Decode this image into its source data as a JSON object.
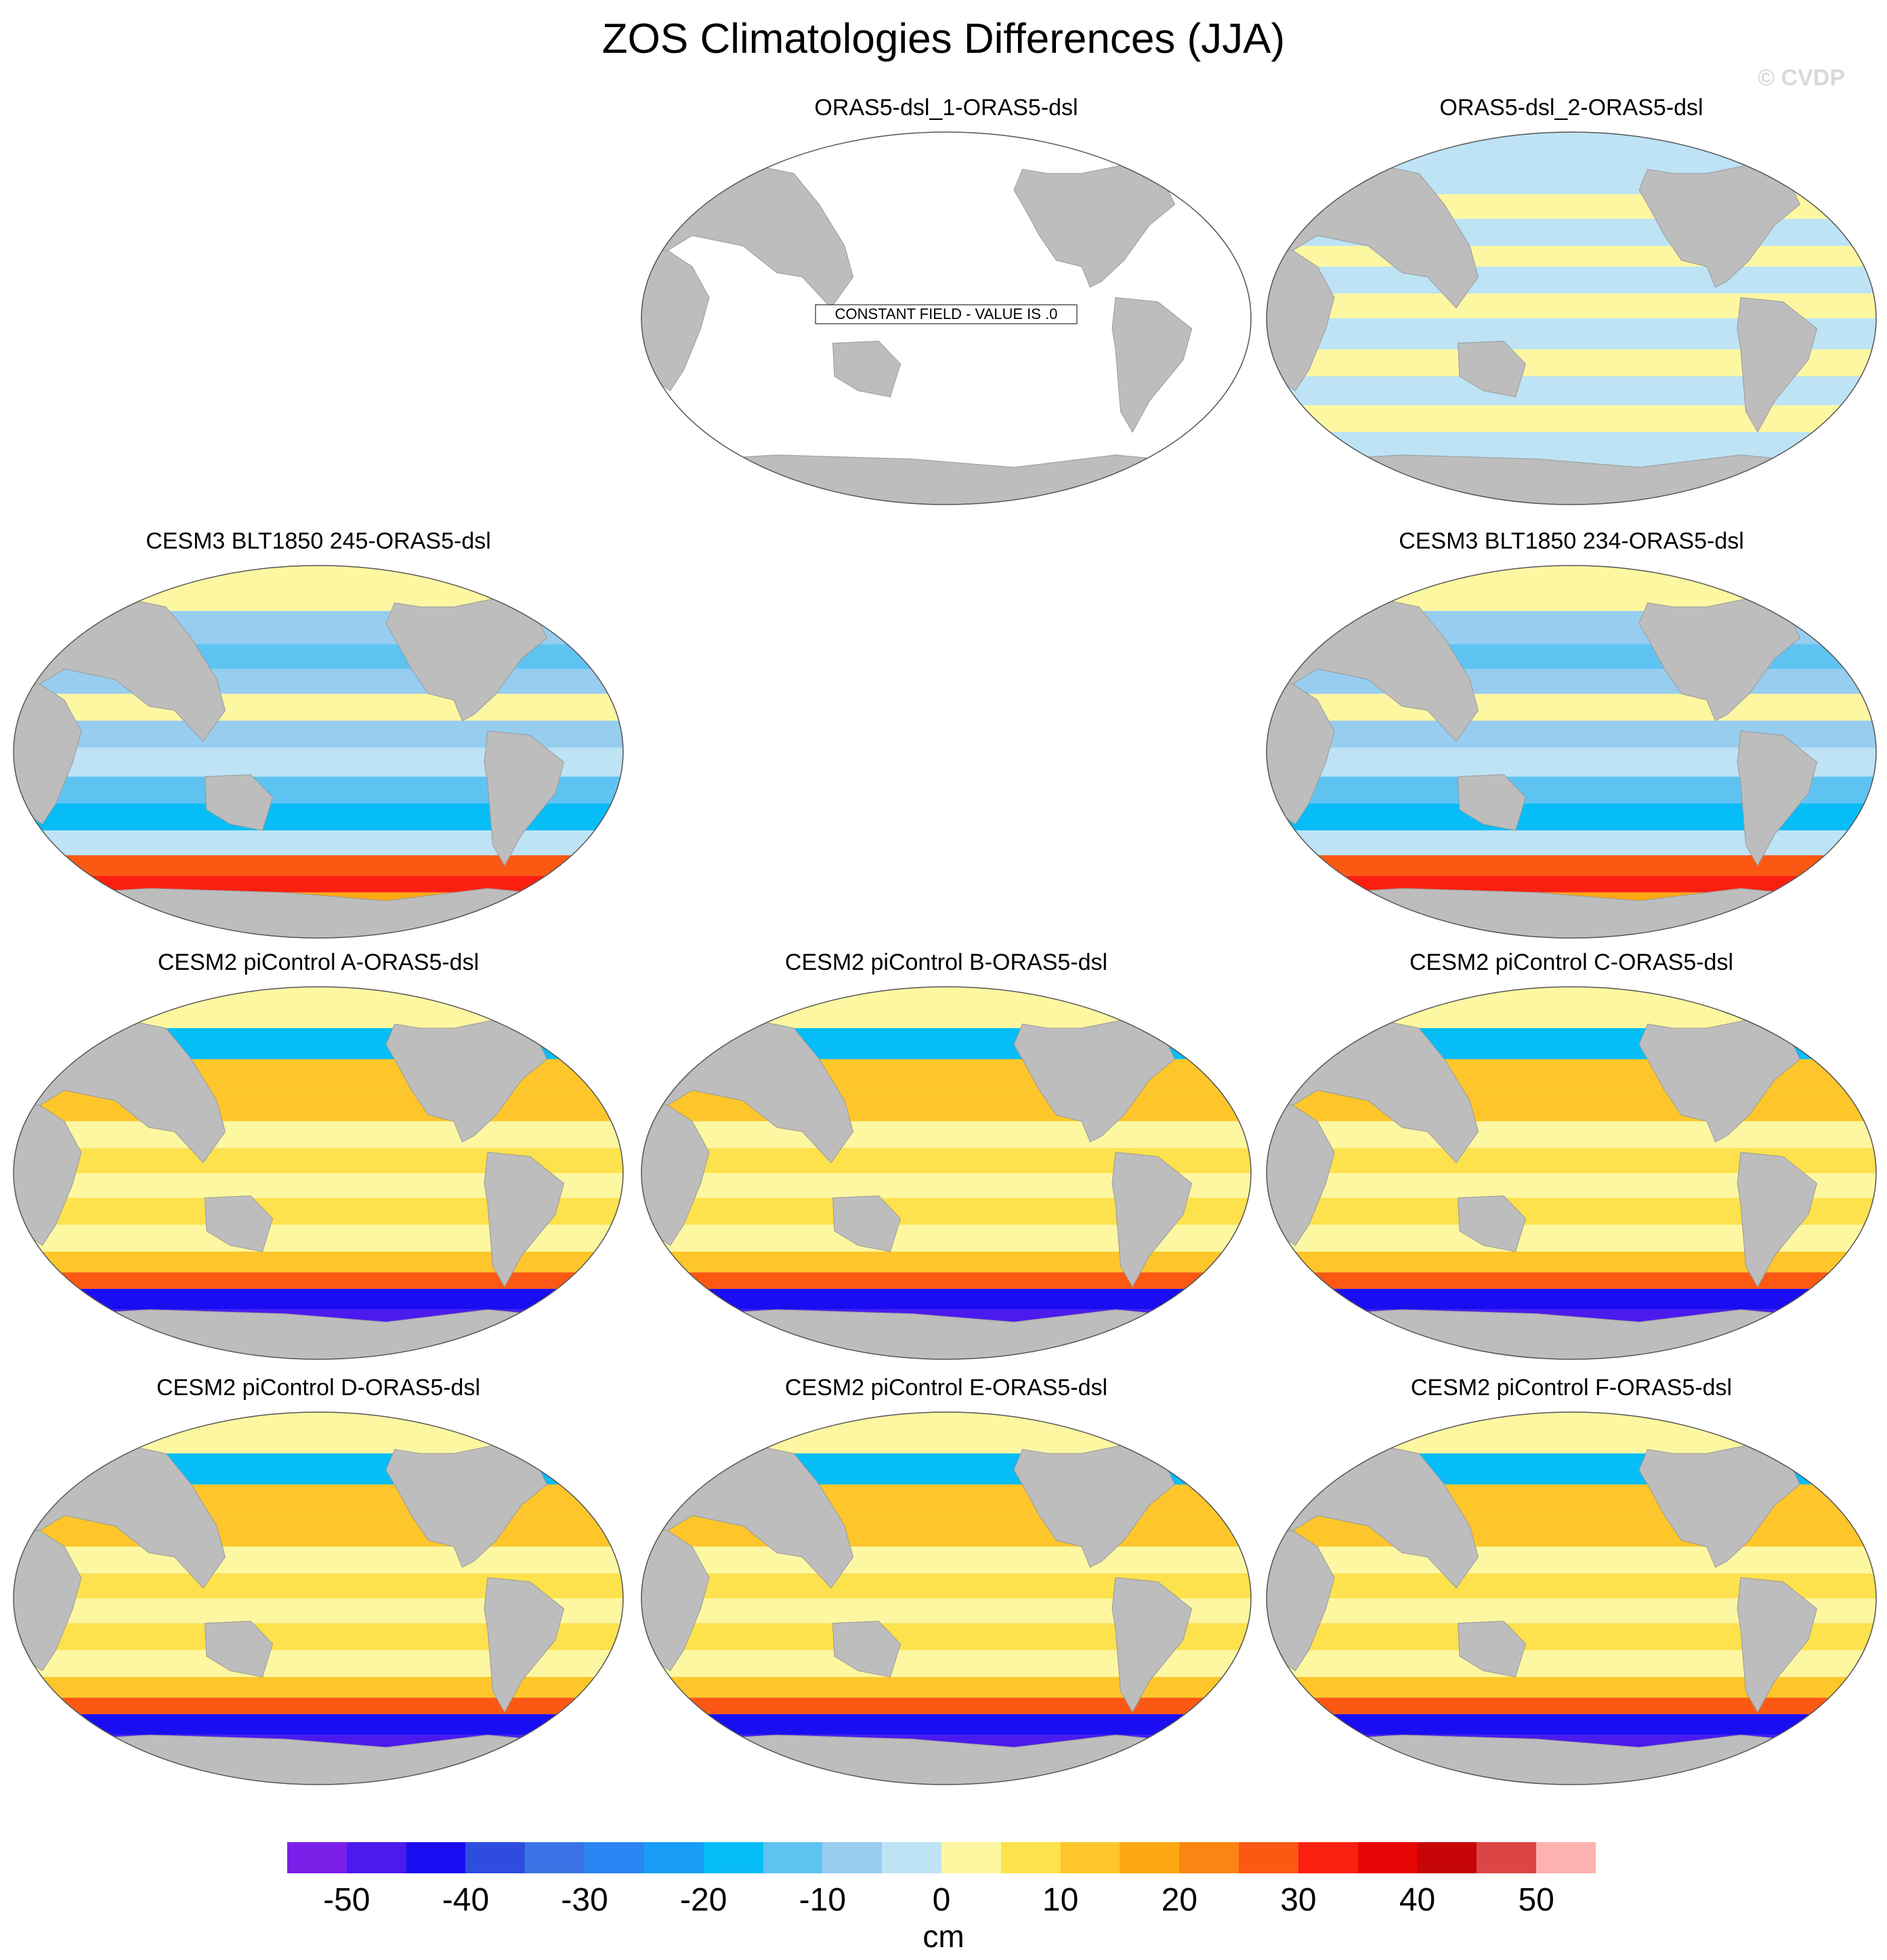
{
  "title": "ZOS Climatologies Differences (JJA)",
  "watermark": "© CVDP",
  "panels": [
    {
      "label": "ORAS5-dsl_1-ORAS5-dsl",
      "pattern": "constant",
      "message": "CONSTANT FIELD - VALUE IS .0"
    },
    {
      "label": "ORAS5-dsl_2-ORAS5-dsl",
      "pattern": "near-zero"
    },
    {
      "label": "CESM3 BLT1850 245-ORAS5-dsl",
      "pattern": "cesm3"
    },
    {
      "label": "CESM3 BLT1850 234-ORAS5-dsl",
      "pattern": "cesm3"
    },
    {
      "label": "CESM2 piControl A-ORAS5-dsl",
      "pattern": "cesm2"
    },
    {
      "label": "CESM2 piControl B-ORAS5-dsl",
      "pattern": "cesm2"
    },
    {
      "label": "CESM2 piControl C-ORAS5-dsl",
      "pattern": "cesm2"
    },
    {
      "label": "CESM2 piControl D-ORAS5-dsl",
      "pattern": "cesm2"
    },
    {
      "label": "CESM2 piControl E-ORAS5-dsl",
      "pattern": "cesm2"
    },
    {
      "label": "CESM2 piControl F-ORAS5-dsl",
      "pattern": "cesm2"
    }
  ],
  "colorbar": {
    "colors": [
      "#7b1fe8",
      "#4b1aef",
      "#1a0df2",
      "#2e4ddf",
      "#3a73e6",
      "#2a86f2",
      "#189ef5",
      "#07bdf7",
      "#5fc3f2",
      "#97cdef",
      "#bde3f5",
      "#fdf7a2",
      "#fde14d",
      "#fec62a",
      "#fda812",
      "#fb8512",
      "#fb5913",
      "#fb1f0f",
      "#e80505",
      "#c60606",
      "#dc4545",
      "#fdb1b1"
    ],
    "ticks": [
      "-50",
      "-40",
      "-30",
      "-20",
      "-10",
      "0",
      "10",
      "20",
      "30",
      "40",
      "50"
    ],
    "units": "cm"
  },
  "map_colors": {
    "land": "#bdbdbd",
    "ocean_blank": "#ffffff"
  }
}
